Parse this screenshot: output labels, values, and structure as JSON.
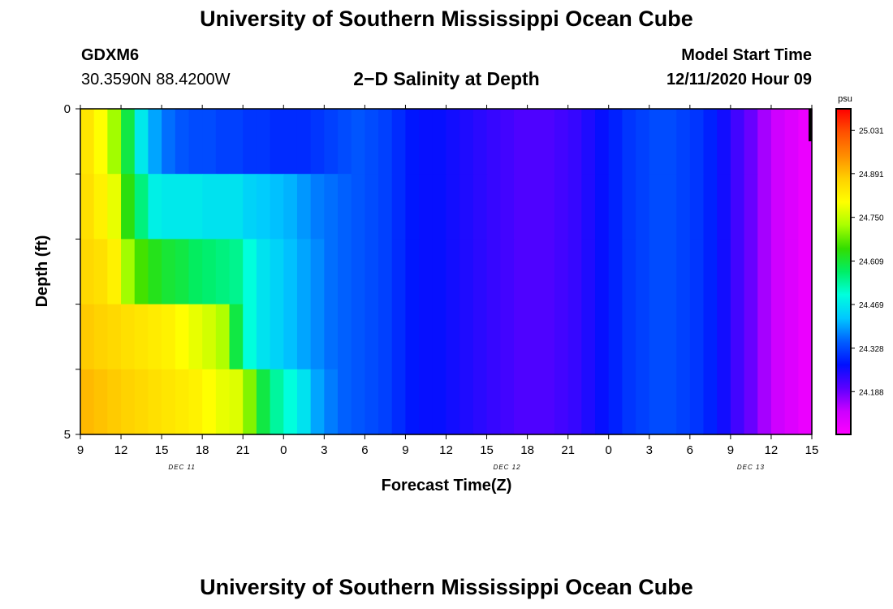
{
  "header": {
    "title": "University of Southern Mississippi Ocean Cube",
    "station_id": "GDXM6",
    "coordinates": "30.3590N 88.4200W",
    "subtitle": "2−D Salinity at Depth",
    "model_start_label": "Model Start Time",
    "model_start_value": "12/11/2020 Hour 09"
  },
  "footer": {
    "title": "University of Southern Mississippi Ocean Cube"
  },
  "chart_data": {
    "type": "heatmap",
    "title": "2−D Salinity at Depth",
    "xlabel": "Forecast Time(Z)",
    "ylabel": "Depth (ft)",
    "x_start": "2020-12-11T09:00Z",
    "x_tick_labels": [
      "9",
      "12",
      "15",
      "18",
      "21",
      "0",
      "3",
      "6",
      "9",
      "12",
      "15",
      "18",
      "21",
      "0",
      "3",
      "6",
      "9",
      "12",
      "15"
    ],
    "date_labels": [
      {
        "label": "DEC 11",
        "tick": 2.5
      },
      {
        "label": "DEC 12",
        "tick": 10.5
      },
      {
        "label": "DEC 13",
        "tick": 16.5
      }
    ],
    "ylim": [
      0,
      5
    ],
    "y_tick_labels": [
      {
        "value": 0,
        "label": "0"
      },
      {
        "value": 5,
        "label": "5"
      }
    ],
    "depth_layers": 5,
    "colorbar": {
      "unit": "psu",
      "tick_labels": [
        "25.031",
        "24.891",
        "24.750",
        "24.609",
        "24.469",
        "24.328",
        "24.188"
      ],
      "colors": [
        "#ff0000",
        "#ff5000",
        "#ff8c00",
        "#ffd000",
        "#ffff00",
        "#aaff00",
        "#33dd00",
        "#00ee66",
        "#00ffdd",
        "#00c8ff",
        "#0060ff",
        "#0010ff",
        "#5a00ff",
        "#cc00ff",
        "#ff00ff"
      ]
    },
    "series": [
      {
        "depth": "0–1",
        "hours": [
          0,
          1,
          2,
          3,
          4,
          5,
          6,
          7,
          8,
          9,
          10,
          11,
          12,
          13,
          14,
          15,
          16,
          17,
          18,
          19,
          20,
          21,
          22,
          23,
          24,
          25,
          26,
          27,
          28,
          29,
          30,
          31,
          32,
          33,
          34,
          35,
          36,
          37,
          38,
          39,
          40,
          41,
          42,
          43,
          44,
          45,
          46,
          47,
          48,
          49,
          50,
          51,
          52,
          53,
          54
        ],
        "values": [
          24.84,
          24.8,
          24.72,
          24.6,
          24.47,
          24.4,
          24.36,
          24.34,
          24.33,
          24.33,
          24.32,
          24.32,
          24.31,
          24.31,
          24.3,
          24.3,
          24.3,
          24.31,
          24.32,
          24.33,
          24.34,
          24.33,
          24.32,
          24.3,
          24.28,
          24.27,
          24.27,
          24.26,
          24.25,
          24.24,
          24.23,
          24.22,
          24.21,
          24.21,
          24.21,
          24.22,
          24.23,
          24.25,
          24.27,
          24.29,
          24.31,
          24.32,
          24.33,
          24.33,
          24.32,
          24.31,
          24.29,
          24.26,
          24.22,
          24.19,
          24.15,
          24.12,
          24.1,
          24.08,
          24.07
        ]
      },
      {
        "depth": "1–2",
        "hours": [
          0,
          1,
          2,
          3,
          4,
          5,
          6,
          7,
          8,
          9,
          10,
          11,
          12,
          13,
          14,
          15,
          16,
          17,
          18,
          19,
          20,
          21,
          22,
          23,
          24,
          25,
          26,
          27,
          28,
          29,
          30,
          31,
          32,
          33,
          34,
          35,
          36,
          37,
          38,
          39,
          40,
          41,
          42,
          43,
          44,
          45,
          46,
          47,
          48,
          49,
          50,
          51,
          52,
          53,
          54
        ],
        "values": [
          24.85,
          24.82,
          24.78,
          24.64,
          24.56,
          24.48,
          24.47,
          24.47,
          24.47,
          24.46,
          24.46,
          24.46,
          24.44,
          24.43,
          24.42,
          24.41,
          24.39,
          24.37,
          24.36,
          24.35,
          24.34,
          24.33,
          24.32,
          24.3,
          24.28,
          24.27,
          24.27,
          24.26,
          24.25,
          24.24,
          24.23,
          24.22,
          24.21,
          24.21,
          24.21,
          24.22,
          24.23,
          24.25,
          24.27,
          24.29,
          24.31,
          24.32,
          24.33,
          24.33,
          24.32,
          24.31,
          24.29,
          24.26,
          24.22,
          24.19,
          24.15,
          24.12,
          24.1,
          24.08,
          24.07
        ]
      },
      {
        "depth": "2–3",
        "hours": [
          0,
          1,
          2,
          3,
          4,
          5,
          6,
          7,
          8,
          9,
          10,
          11,
          12,
          13,
          14,
          15,
          16,
          17,
          18,
          19,
          20,
          21,
          22,
          23,
          24,
          25,
          26,
          27,
          28,
          29,
          30,
          31,
          32,
          33,
          34,
          35,
          36,
          37,
          38,
          39,
          40,
          41,
          42,
          43,
          44,
          45,
          46,
          47,
          48,
          49,
          50,
          51,
          52,
          53,
          54
        ],
        "values": [
          24.86,
          24.85,
          24.82,
          24.72,
          24.66,
          24.63,
          24.61,
          24.6,
          24.58,
          24.57,
          24.56,
          24.55,
          24.5,
          24.46,
          24.44,
          24.42,
          24.4,
          24.38,
          24.36,
          24.35,
          24.34,
          24.33,
          24.32,
          24.3,
          24.28,
          24.27,
          24.27,
          24.26,
          24.25,
          24.24,
          24.23,
          24.22,
          24.21,
          24.21,
          24.21,
          24.22,
          24.23,
          24.25,
          24.27,
          24.29,
          24.31,
          24.32,
          24.33,
          24.33,
          24.32,
          24.31,
          24.29,
          24.26,
          24.22,
          24.19,
          24.15,
          24.12,
          24.1,
          24.08,
          24.07
        ]
      },
      {
        "depth": "3–4",
        "hours": [
          0,
          1,
          2,
          3,
          4,
          5,
          6,
          7,
          8,
          9,
          10,
          11,
          12,
          13,
          14,
          15,
          16,
          17,
          18,
          19,
          20,
          21,
          22,
          23,
          24,
          25,
          26,
          27,
          28,
          29,
          30,
          31,
          32,
          33,
          34,
          35,
          36,
          37,
          38,
          39,
          40,
          41,
          42,
          43,
          44,
          45,
          46,
          47,
          48,
          49,
          50,
          51,
          52,
          53,
          54
        ],
        "values": [
          24.88,
          24.87,
          24.86,
          24.85,
          24.84,
          24.83,
          24.82,
          24.8,
          24.78,
          24.76,
          24.73,
          24.6,
          24.5,
          24.46,
          24.44,
          24.42,
          24.4,
          24.38,
          24.36,
          24.35,
          24.34,
          24.33,
          24.32,
          24.3,
          24.28,
          24.27,
          24.27,
          24.26,
          24.25,
          24.24,
          24.23,
          24.22,
          24.21,
          24.21,
          24.21,
          24.22,
          24.23,
          24.25,
          24.27,
          24.29,
          24.31,
          24.32,
          24.33,
          24.33,
          24.32,
          24.31,
          24.29,
          24.26,
          24.22,
          24.19,
          24.15,
          24.12,
          24.1,
          24.08,
          24.07
        ]
      },
      {
        "depth": "4–5",
        "hours": [
          0,
          1,
          2,
          3,
          4,
          5,
          6,
          7,
          8,
          9,
          10,
          11,
          12,
          13,
          14,
          15,
          16,
          17,
          18,
          19,
          20,
          21,
          22,
          23,
          24,
          25,
          26,
          27,
          28,
          29,
          30,
          31,
          32,
          33,
          34,
          35,
          36,
          37,
          38,
          39,
          40,
          41,
          42,
          43,
          44,
          45,
          46,
          47,
          48,
          49,
          50,
          51,
          52,
          53,
          54
        ],
        "values": [
          24.9,
          24.89,
          24.88,
          24.87,
          24.86,
          24.85,
          24.84,
          24.83,
          24.82,
          24.8,
          24.78,
          24.77,
          24.7,
          24.6,
          24.54,
          24.5,
          24.46,
          24.4,
          24.37,
          24.35,
          24.34,
          24.33,
          24.32,
          24.3,
          24.28,
          24.27,
          24.27,
          24.26,
          24.25,
          24.24,
          24.23,
          24.22,
          24.21,
          24.21,
          24.21,
          24.22,
          24.23,
          24.25,
          24.27,
          24.29,
          24.31,
          24.32,
          24.33,
          24.33,
          24.32,
          24.31,
          24.29,
          24.26,
          24.22,
          24.19,
          24.15,
          24.12,
          24.1,
          24.08,
          24.07
        ]
      }
    ]
  }
}
